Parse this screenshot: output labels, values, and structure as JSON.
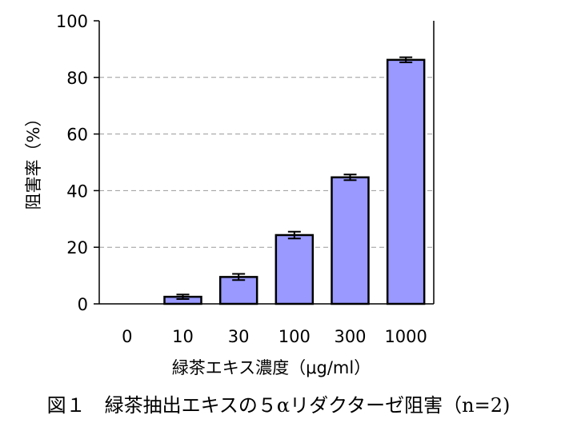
{
  "chart_data": {
    "type": "bar",
    "categories": [
      "0",
      "10",
      "30",
      "100",
      "300",
      "1000"
    ],
    "values": [
      0,
      2.5,
      9.5,
      24.3,
      44.7,
      86.2
    ],
    "error": [
      0,
      0.8,
      1.1,
      1.2,
      1.0,
      0.9
    ],
    "ylim": [
      0,
      100
    ],
    "yticks": [
      "0",
      "20",
      "40",
      "60",
      "80",
      "100"
    ],
    "ylabel": "阻害率（%）",
    "xlabel": "緑茶エキス濃度（μg/ml）",
    "caption": "図１　緑茶抽出エキスの５αリダクターゼ阻害（n=2)",
    "grid": "dashed-horizontal",
    "colors": {
      "bar_fill": "#9999ff",
      "bar_stroke": "#000000",
      "grid": "#9a9a9a",
      "axis": "#000000"
    }
  }
}
